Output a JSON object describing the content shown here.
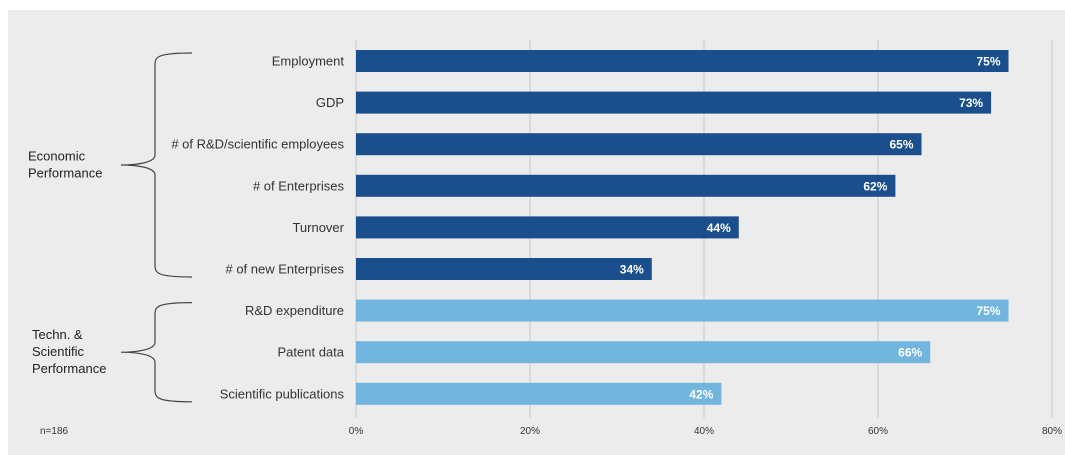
{
  "chart_data": {
    "type": "bar",
    "orientation": "horizontal",
    "categories": [
      "Employment",
      "GDP",
      "# of R&D/scientific employees",
      "# of Enterprises",
      "Turnover",
      "# of new Enterprises",
      "R&D expenditure",
      "Patent data",
      "Scientific publications"
    ],
    "values": [
      75,
      73,
      65,
      62,
      44,
      34,
      75,
      66,
      42
    ],
    "value_labels": [
      "75%",
      "73%",
      "65%",
      "62%",
      "44%",
      "34%",
      "75%",
      "66%",
      "42%"
    ],
    "groups": [
      {
        "label_lines": [
          "Economic",
          "Performance"
        ],
        "first": 0,
        "last": 5,
        "color": "#1a4e8c"
      },
      {
        "label_lines": [
          "Techn. &",
          "Scientific",
          "Performance"
        ],
        "first": 6,
        "last": 8,
        "color": "#72b6e0"
      }
    ],
    "xlim": [
      0,
      80
    ],
    "xticks": [
      "0%",
      "20%",
      "40%",
      "60%",
      "80%"
    ],
    "grid": true,
    "note": "n=186"
  }
}
